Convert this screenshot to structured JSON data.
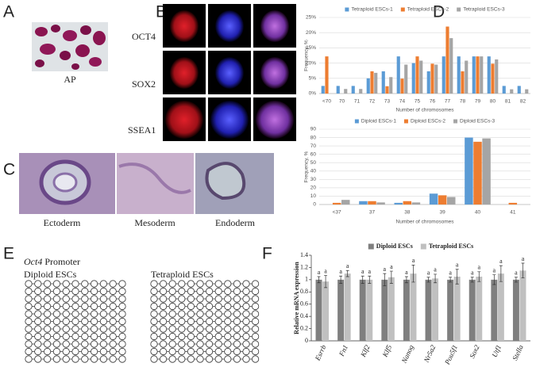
{
  "panels": {
    "a": {
      "label": "A",
      "caption": "AP"
    },
    "b": {
      "label": "B",
      "rows": [
        "OCT4",
        "SOX2",
        "SSEA1"
      ]
    },
    "c": {
      "label": "C",
      "captions": [
        "Ectoderm",
        "Mesoderm",
        "Endoderm"
      ]
    },
    "d": {
      "label": "D"
    },
    "e": {
      "label": "E",
      "gene": "Oct4",
      "title": "Promoter",
      "groups": [
        "Diploid ESCs",
        "Tetraploid ESCs"
      ]
    },
    "f": {
      "label": "F"
    }
  },
  "chart_data": [
    {
      "type": "bar",
      "xlabel": "Number of chromosomes",
      "ylabel": "Frequency, %",
      "categories": [
        "<70",
        "70",
        "71",
        "72",
        "73",
        "74",
        "75",
        "76",
        "77",
        "78",
        "79",
        "80",
        "81",
        "82"
      ],
      "series": [
        {
          "name": "Tetraploid ESCs-1",
          "color": "#5b9bd5",
          "values": [
            2.5,
            2.5,
            2.5,
            5,
            7.3,
            12.2,
            10,
            7.3,
            12.2,
            12.2,
            12.2,
            12.2,
            2.5,
            2.5
          ]
        },
        {
          "name": "Tetraploid ESCs-2",
          "color": "#ed7d31",
          "values": [
            12.2,
            0,
            0,
            7.3,
            2.4,
            4.9,
            12.2,
            9.8,
            22,
            7.3,
            12.2,
            9.8,
            0,
            0
          ]
        },
        {
          "name": "Tetraploid ESCs-3",
          "color": "#a5a5a5",
          "values": [
            0,
            1.5,
            1.5,
            6.8,
            5.4,
            9.5,
            10.8,
            9.5,
            18.2,
            10.8,
            12.2,
            11.2,
            1.4,
            1.4
          ]
        }
      ],
      "ylim": [
        0,
        25
      ],
      "yticks": [
        {
          "value": 0,
          "label": "0%"
        },
        {
          "value": 5,
          "label": "5%"
        },
        {
          "value": 10,
          "label": "10%"
        },
        {
          "value": 15,
          "label": "15%"
        },
        {
          "value": 20,
          "label": "20%"
        },
        {
          "value": 25,
          "label": "25%"
        }
      ],
      "grid": true,
      "legend": "top"
    },
    {
      "type": "bar",
      "xlabel": "Number of chromosomes",
      "ylabel": "Frequency, %",
      "categories": [
        "<37",
        "37",
        "38",
        "39",
        "40",
        "41"
      ],
      "series": [
        {
          "name": "Diploid ESCs-1",
          "color": "#5b9bd5",
          "values": [
            0,
            4,
            2,
            13,
            80,
            0
          ]
        },
        {
          "name": "Diploid ESCs-2",
          "color": "#ed7d31",
          "values": [
            2,
            4,
            4,
            11,
            75,
            2
          ]
        },
        {
          "name": "Diploid ESCs-3",
          "color": "#a5a5a5",
          "values": [
            5.5,
            2.5,
            2.5,
            9,
            79,
            0
          ]
        }
      ],
      "ylim": [
        0,
        90
      ],
      "yticks": [
        0,
        10,
        20,
        30,
        40,
        50,
        60,
        70,
        80,
        90
      ],
      "grid": true,
      "legend": "top"
    },
    {
      "type": "bar",
      "ylabel": "Relative mRNA expression",
      "categories": [
        "Esrrb",
        "Fn1",
        "Klf2",
        "Klf5",
        "Nanog",
        "Nr5a2",
        "Pou5f1",
        "Sox2",
        "Utf1",
        "Stella"
      ],
      "series": [
        {
          "name": "Diploid ESCs",
          "color": "#7f7f7f",
          "values": [
            1,
            1,
            1,
            1,
            1,
            1,
            1,
            1,
            1,
            1
          ],
          "errors": [
            0.05,
            0.06,
            0.06,
            0.1,
            0.05,
            0.04,
            0.04,
            0.04,
            0.08,
            0.04
          ],
          "labels": [
            "a",
            "a",
            "a",
            "a",
            "a",
            "a",
            "a",
            "a",
            "a",
            "a"
          ]
        },
        {
          "name": "Tetraploid ESCs",
          "color": "#c0c0c0",
          "values": [
            0.97,
            1.1,
            1,
            1.04,
            1.1,
            1.02,
            1.05,
            1.05,
            1.1,
            1.15
          ],
          "errors": [
            0.1,
            0.05,
            0.06,
            0.1,
            0.14,
            0.07,
            0.12,
            0.08,
            0.13,
            0.12
          ],
          "labels": [
            "a",
            "a",
            "a",
            "a",
            "a",
            "a",
            "a",
            "a",
            "a",
            "a"
          ]
        }
      ],
      "ylim": [
        0,
        1.4
      ],
      "yticks": [
        0,
        0.2,
        0.4,
        0.6,
        0.8,
        1,
        1.2,
        1.4
      ],
      "grid": false,
      "legend": "top"
    }
  ]
}
